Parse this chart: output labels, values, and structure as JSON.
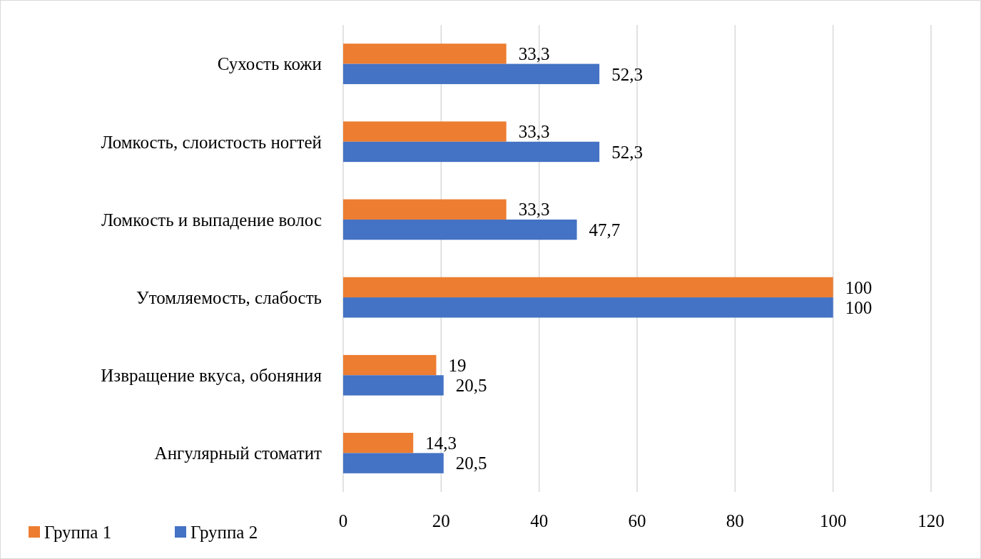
{
  "chart_data": {
    "type": "bar",
    "orientation": "horizontal",
    "categories": [
      "Сухость кожи",
      "Ломкость, слоистость ногтей",
      "Ломкость и выпадение волос",
      "Утомляемость, слабость",
      "Извращение вкуса, обоняния",
      "Ангулярный стоматит"
    ],
    "series": [
      {
        "name": "Группа 1",
        "color": "#ed7d31",
        "values": [
          33.3,
          33.3,
          33.3,
          100,
          19,
          14.3
        ],
        "value_labels": [
          "33,3",
          "33,3",
          "33,3",
          "100",
          "19",
          "14,3"
        ]
      },
      {
        "name": "Группа 2",
        "color": "#4472c4",
        "values": [
          52.3,
          52.3,
          47.7,
          100,
          20.5,
          20.5
        ],
        "value_labels": [
          "52,3",
          "52,3",
          "47,7",
          "100",
          "20,5",
          "20,5"
        ]
      }
    ],
    "xlim": [
      0,
      120
    ],
    "xticks": [
      0,
      20,
      40,
      60,
      80,
      100,
      120
    ],
    "grid": "x",
    "legend": "bottom"
  }
}
